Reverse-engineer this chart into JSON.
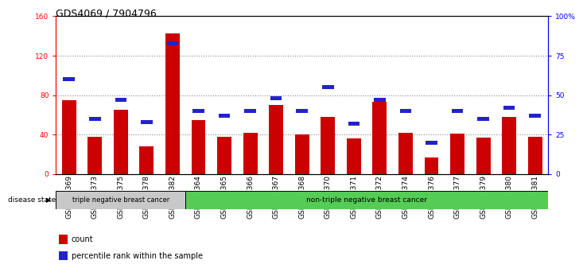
{
  "title": "GDS4069 / 7904796",
  "samples": [
    "GSM678369",
    "GSM678373",
    "GSM678375",
    "GSM678378",
    "GSM678382",
    "GSM678364",
    "GSM678365",
    "GSM678366",
    "GSM678367",
    "GSM678368",
    "GSM678370",
    "GSM678371",
    "GSM678372",
    "GSM678374",
    "GSM678376",
    "GSM678377",
    "GSM678379",
    "GSM678380",
    "GSM678381"
  ],
  "counts": [
    75,
    38,
    65,
    28,
    143,
    55,
    38,
    42,
    70,
    40,
    58,
    36,
    73,
    42,
    17,
    41,
    37,
    58,
    38
  ],
  "percentiles": [
    60,
    35,
    47,
    33,
    83,
    40,
    37,
    40,
    48,
    40,
    55,
    32,
    47,
    40,
    20,
    40,
    35,
    42,
    37
  ],
  "bar_color": "#cc0000",
  "blue_color": "#2222cc",
  "ylim_left": [
    0,
    160
  ],
  "ylim_right": [
    0,
    100
  ],
  "yticks_left": [
    0,
    40,
    80,
    120,
    160
  ],
  "yticks_right": [
    0,
    25,
    50,
    75,
    100
  ],
  "ytick_labels_right": [
    "0",
    "25",
    "50",
    "75",
    "100%"
  ],
  "group1_label": "triple negative breast cancer",
  "group2_label": "non-triple negative breast cancer",
  "group1_count": 5,
  "disease_state_label": "disease state",
  "legend_count": "count",
  "legend_percentile": "percentile rank within the sample",
  "background_color": "#ffffff",
  "plot_bg_color": "#ffffff",
  "group_bar_color1": "#c8c8c8",
  "group_bar_color2": "#55cc55",
  "title_fontsize": 9,
  "tick_fontsize": 6.5,
  "bar_width": 0.55,
  "blue_bar_height": 4,
  "blue_bar_width": 0.45
}
